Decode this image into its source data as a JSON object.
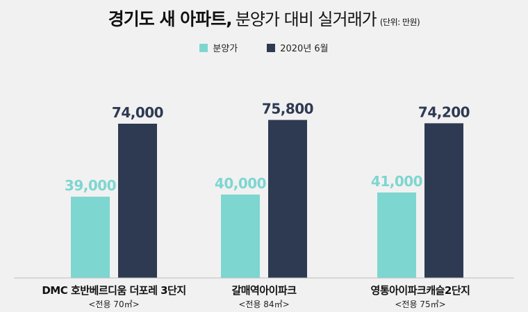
{
  "title": {
    "bold": "경기도 새 아파트,",
    "normal": "분양가 대비 실거래가",
    "unit": "(단위: 만원)"
  },
  "colors": {
    "presale": "#7ed6d0",
    "actual": "#2e3a52",
    "presale_label": "#7ed6d0",
    "actual_label": "#2e3a52"
  },
  "chart_data": {
    "type": "bar",
    "title": "경기도 새 아파트, 분양가 대비 실거래가",
    "unit": "(단위: 만원)",
    "categories": [
      "DMC 호반베르디움 더포레 3단지",
      "갈매역아이파크",
      "영통아이파크캐슬2단지"
    ],
    "category_sub": [
      "<전용 70㎡>",
      "<전용 84㎡>",
      "<전용 75㎡>"
    ],
    "series": [
      {
        "name": "분양가",
        "values": [
          39000,
          40000,
          41000
        ],
        "labels": [
          "39,000",
          "40,000",
          "41,000"
        ]
      },
      {
        "name": "2020년 6월",
        "values": [
          74000,
          75800,
          74200
        ],
        "labels": [
          "74,000",
          "75,800",
          "74,200"
        ]
      }
    ],
    "ylim": [
      0,
      100000
    ],
    "legend": "top-center",
    "grid": false
  }
}
